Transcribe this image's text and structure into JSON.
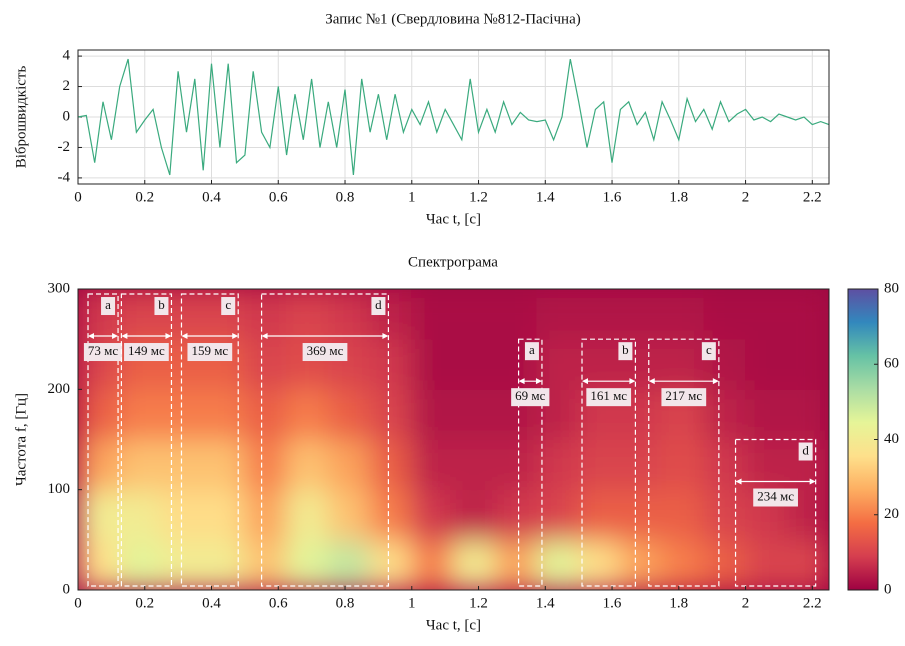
{
  "chart_data": [
    {
      "type": "line",
      "title": "Запис №1 (Свердловина №812-Пасічна)",
      "xlabel": "Час t, [с]",
      "ylabel": "Віброшвидкість",
      "xlim": [
        0,
        2.25
      ],
      "xticks": [
        0,
        0.2,
        0.4,
        0.6,
        0.8,
        1,
        1.2,
        1.4,
        1.6,
        1.8,
        2,
        2.2
      ],
      "ylim": [
        -4.4,
        4.4
      ],
      "yticks": [
        -4,
        -2,
        0,
        2,
        4
      ],
      "grid": true,
      "color": "#3aaa7e",
      "x": [
        0,
        0.025,
        0.05,
        0.075,
        0.1,
        0.125,
        0.15,
        0.175,
        0.2,
        0.225,
        0.25,
        0.275,
        0.3,
        0.325,
        0.35,
        0.375,
        0.4,
        0.425,
        0.45,
        0.475,
        0.5,
        0.525,
        0.55,
        0.575,
        0.6,
        0.625,
        0.65,
        0.675,
        0.7,
        0.725,
        0.75,
        0.775,
        0.8,
        0.825,
        0.85,
        0.875,
        0.9,
        0.925,
        0.95,
        0.975,
        1,
        1.025,
        1.05,
        1.075,
        1.1,
        1.125,
        1.15,
        1.175,
        1.2,
        1.225,
        1.25,
        1.275,
        1.3,
        1.325,
        1.35,
        1.375,
        1.4,
        1.425,
        1.45,
        1.475,
        1.5,
        1.525,
        1.55,
        1.575,
        1.6,
        1.625,
        1.65,
        1.675,
        1.7,
        1.725,
        1.75,
        1.775,
        1.8,
        1.825,
        1.85,
        1.875,
        1.9,
        1.925,
        1.95,
        1.975,
        2,
        2.025,
        2.05,
        2.075,
        2.1,
        2.125,
        2.15,
        2.175,
        2.2,
        2.225,
        2.25
      ],
      "values": [
        0,
        0.1,
        -3,
        1,
        -1.5,
        2,
        3.8,
        -1,
        -0.2,
        0.5,
        -2,
        -3.8,
        3,
        -1,
        2.5,
        -3.5,
        3.5,
        -2,
        3.5,
        -3,
        -2.5,
        3,
        -1,
        -2,
        2,
        -2.5,
        1.5,
        -1.5,
        2.5,
        -2,
        1,
        -2,
        1.8,
        -3.8,
        2.5,
        -1,
        1.5,
        -1.5,
        1.5,
        -1,
        0.5,
        -0.5,
        1,
        -1,
        0.5,
        -0.5,
        -1.5,
        2.5,
        -1,
        0.5,
        -1,
        1,
        -0.5,
        0.3,
        -0.2,
        -0.3,
        -0.2,
        -1.5,
        0,
        3.8,
        1,
        -2,
        0.5,
        1,
        -3,
        0.5,
        1,
        -0.5,
        0.3,
        -1.5,
        1,
        -0.2,
        -1.5,
        1.2,
        -0.3,
        0.5,
        -0.8,
        1,
        -0.3,
        0.2,
        0.5,
        -0.2,
        0,
        -0.3,
        0.2,
        0,
        -0.2,
        0,
        -0.5,
        -0.3,
        -0.5
      ]
    },
    {
      "type": "heatmap",
      "title": "Спектрограма",
      "xlabel": "Час t, [с]",
      "ylabel": "Частота f, [Гц]",
      "xlim": [
        0,
        2.25
      ],
      "xticks": [
        0,
        0.2,
        0.4,
        0.6,
        0.8,
        1,
        1.2,
        1.4,
        1.6,
        1.8,
        2,
        2.2
      ],
      "ylim": [
        0,
        300
      ],
      "yticks": [
        0,
        100,
        200,
        300
      ],
      "clim": [
        0,
        80
      ],
      "cticks": [
        0,
        20,
        40,
        60,
        80
      ],
      "colormap": [
        "#9e0142",
        "#d53e4f",
        "#f46d43",
        "#fdae61",
        "#fee08b",
        "#e6f598",
        "#abdda4",
        "#66c2a5",
        "#3288bd",
        "#5e4fa2"
      ],
      "xbins": [
        0,
        0.125,
        0.25,
        0.375,
        0.5,
        0.625,
        0.75,
        0.875,
        1,
        1.125,
        1.25,
        1.375,
        1.5,
        1.625,
        1.75,
        1.875,
        2,
        2.125,
        2.25
      ],
      "ybins": [
        0,
        50,
        100,
        150,
        200,
        250,
        300
      ],
      "z": [
        [
          35,
          45,
          40,
          40,
          30,
          45,
          50,
          35,
          20,
          40,
          25,
          45,
          35,
          25,
          20,
          15,
          10,
          10
        ],
        [
          40,
          40,
          35,
          35,
          25,
          40,
          30,
          20,
          8,
          5,
          8,
          10,
          15,
          15,
          15,
          10,
          8,
          5
        ],
        [
          25,
          30,
          30,
          30,
          20,
          30,
          25,
          15,
          5,
          5,
          5,
          8,
          10,
          10,
          12,
          8,
          5,
          5
        ],
        [
          15,
          20,
          20,
          20,
          15,
          20,
          15,
          10,
          3,
          3,
          3,
          5,
          8,
          8,
          10,
          5,
          3,
          3
        ],
        [
          10,
          15,
          15,
          15,
          10,
          12,
          10,
          8,
          2,
          2,
          2,
          5,
          5,
          5,
          5,
          3,
          2,
          2
        ],
        [
          8,
          10,
          10,
          10,
          8,
          10,
          8,
          5,
          2,
          2,
          2,
          3,
          3,
          3,
          3,
          2,
          2,
          2
        ]
      ],
      "regions": [
        {
          "label": "a",
          "start": 0.03,
          "end": 0.12,
          "top": 295,
          "duration_label": "73 мс"
        },
        {
          "label": "b",
          "start": 0.13,
          "end": 0.28,
          "top": 295,
          "duration_label": "149 мс"
        },
        {
          "label": "c",
          "start": 0.31,
          "end": 0.48,
          "top": 295,
          "duration_label": "159 мс"
        },
        {
          "label": "d",
          "start": 0.55,
          "end": 0.93,
          "top": 295,
          "duration_label": "369 мс"
        },
        {
          "label": "a",
          "start": 1.32,
          "end": 1.39,
          "top": 250,
          "duration_label": "69 мс"
        },
        {
          "label": "b",
          "start": 1.51,
          "end": 1.67,
          "top": 250,
          "duration_label": "161 мс"
        },
        {
          "label": "c",
          "start": 1.71,
          "end": 1.92,
          "top": 250,
          "duration_label": "217 мс"
        },
        {
          "label": "d",
          "start": 1.97,
          "end": 2.21,
          "top": 150,
          "duration_label": "234 мс"
        }
      ]
    }
  ]
}
